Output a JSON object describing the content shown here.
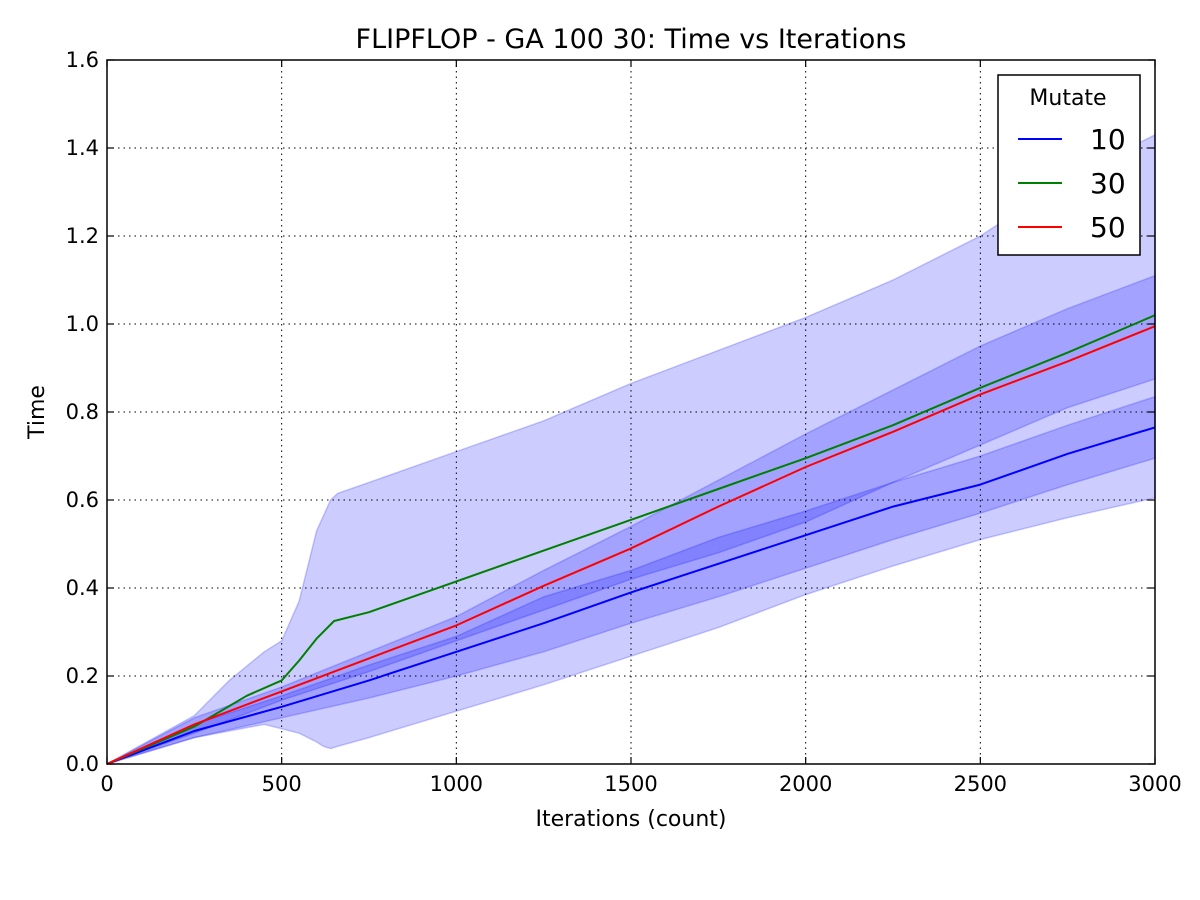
{
  "chart_data": {
    "type": "line",
    "title": "FLIPFLOP - GA 100 30: Time vs Iterations",
    "xlabel": "Iterations (count)",
    "ylabel": "Time",
    "xlim": [
      0,
      3000
    ],
    "ylim": [
      0,
      1.6
    ],
    "xticks": [
      0,
      500,
      1000,
      1500,
      2000,
      2500,
      3000
    ],
    "xtick_labels": [
      "0",
      "500",
      "1000",
      "1500",
      "2000",
      "2500",
      "3000"
    ],
    "yticks": [
      0,
      0.2,
      0.4,
      0.6,
      0.8,
      1.0,
      1.2,
      1.4,
      1.6
    ],
    "ytick_labels": [
      "0.0",
      "0.2",
      "0.4",
      "0.6",
      "0.8",
      "1.0",
      "1.2",
      "1.4",
      "1.6"
    ],
    "grid": true,
    "legend": {
      "title": "Mutate",
      "position": "top-right"
    },
    "band_color": "#0000ff",
    "series": [
      {
        "name": "10",
        "color": "#0000ff",
        "x": [
          0,
          250,
          500,
          750,
          1000,
          1250,
          1500,
          1750,
          2000,
          2250,
          2500,
          2750,
          3000
        ],
        "y": [
          0.0,
          0.075,
          0.13,
          0.19,
          0.255,
          0.32,
          0.39,
          0.455,
          0.52,
          0.585,
          0.635,
          0.705,
          0.765
        ]
      },
      {
        "name": "30",
        "color": "#008000",
        "x": [
          0,
          250,
          400,
          500,
          550,
          600,
          650,
          750,
          1000,
          1250,
          1500,
          1750,
          2000,
          2250,
          2500,
          2750,
          3000
        ],
        "y": [
          0.0,
          0.085,
          0.155,
          0.19,
          0.235,
          0.285,
          0.325,
          0.345,
          0.415,
          0.485,
          0.555,
          0.625,
          0.695,
          0.77,
          0.855,
          0.935,
          1.02
        ]
      },
      {
        "name": "50",
        "color": "#ff0000",
        "x": [
          0,
          250,
          500,
          750,
          1000,
          1250,
          1500,
          1750,
          2000,
          2250,
          2500,
          2750,
          3000
        ],
        "y": [
          0.0,
          0.09,
          0.165,
          0.24,
          0.315,
          0.405,
          0.49,
          0.585,
          0.675,
          0.755,
          0.84,
          0.915,
          0.995
        ]
      }
    ],
    "bands": [
      {
        "series": "10",
        "x": [
          0,
          250,
          500,
          750,
          1000,
          1250,
          1500,
          1750,
          2000,
          2250,
          2500,
          2750,
          3000
        ],
        "lower": [
          0.0,
          0.06,
          0.105,
          0.15,
          0.2,
          0.255,
          0.32,
          0.38,
          0.445,
          0.51,
          0.57,
          0.635,
          0.695
        ],
        "upper": [
          0.0,
          0.09,
          0.155,
          0.225,
          0.29,
          0.38,
          0.44,
          0.515,
          0.575,
          0.64,
          0.7,
          0.77,
          0.835
        ]
      },
      {
        "series": "30",
        "x": [
          0,
          250,
          350,
          450,
          500,
          550,
          600,
          620,
          640,
          660,
          750,
          1000,
          1250,
          1500,
          1750,
          2000,
          2250,
          2500,
          2750,
          3000
        ],
        "lower": [
          0.0,
          0.06,
          0.075,
          0.09,
          0.08,
          0.07,
          0.05,
          0.04,
          0.035,
          0.04,
          0.06,
          0.12,
          0.18,
          0.245,
          0.31,
          0.385,
          0.45,
          0.51,
          0.56,
          0.605
        ],
        "upper": [
          0.0,
          0.11,
          0.19,
          0.255,
          0.28,
          0.37,
          0.53,
          0.565,
          0.6,
          0.615,
          0.64,
          0.71,
          0.78,
          0.865,
          0.94,
          1.015,
          1.1,
          1.2,
          1.33,
          1.43
        ]
      },
      {
        "series": "50",
        "x": [
          0,
          250,
          500,
          750,
          1000,
          1250,
          1500,
          1750,
          2000,
          2250,
          2500,
          2750,
          3000
        ],
        "lower": [
          0.0,
          0.07,
          0.145,
          0.21,
          0.28,
          0.35,
          0.42,
          0.48,
          0.55,
          0.64,
          0.725,
          0.81,
          0.875
        ],
        "upper": [
          0.0,
          0.105,
          0.175,
          0.255,
          0.335,
          0.44,
          0.54,
          0.645,
          0.75,
          0.85,
          0.95,
          1.035,
          1.11
        ]
      }
    ]
  }
}
